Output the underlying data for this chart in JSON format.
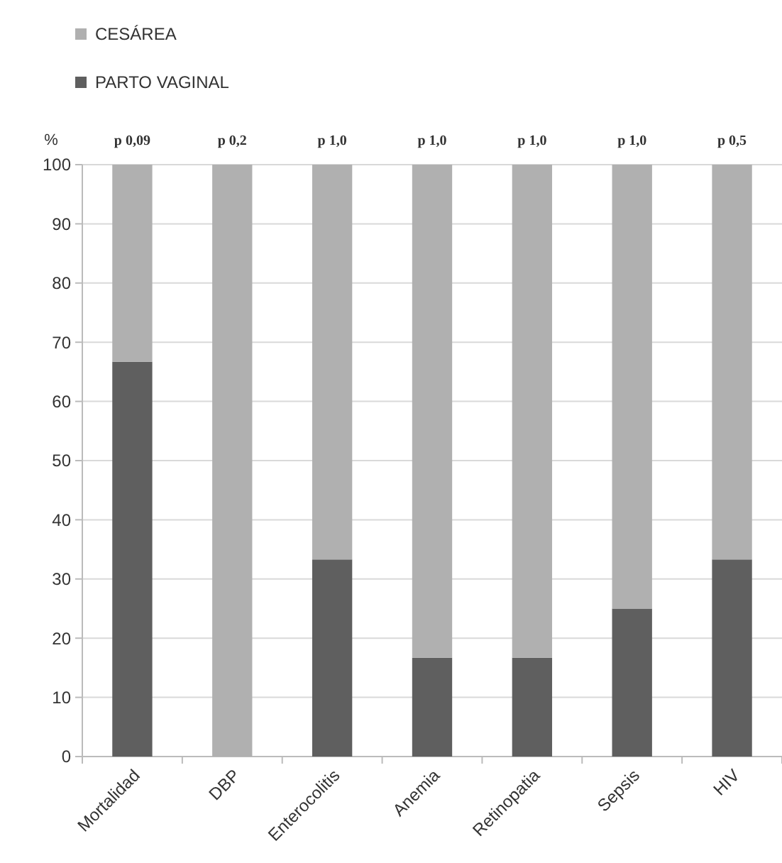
{
  "chart_data": {
    "type": "bar",
    "stacked": true,
    "ylabel": "%",
    "categories": [
      "Mortalidad",
      "DBP",
      "Enterocolitis",
      "Anemia",
      "Retinopatia",
      "Sepsis",
      "HIV"
    ],
    "series": [
      {
        "name": "PARTO VAGINAL",
        "color": "#5f5f5f",
        "values": [
          66.7,
          0,
          33.3,
          16.7,
          16.7,
          25,
          33.3
        ]
      },
      {
        "name": "CESÁREA",
        "color": "#b0b0b0",
        "values": [
          33.3,
          100,
          66.7,
          83.3,
          83.3,
          75,
          66.7
        ]
      }
    ],
    "ylim": [
      0,
      100
    ],
    "yticks": [
      0,
      10,
      20,
      30,
      40,
      50,
      60,
      70,
      80,
      90,
      100
    ],
    "grid": "y",
    "legend": "top left",
    "annotations": [
      {
        "text": "p 0,09",
        "x": "Mortalidad",
        "y": 100
      },
      {
        "text": "p 0,2",
        "x": "DBP",
        "y": 100
      },
      {
        "text": "p 1,0",
        "x": "Enterocolitis",
        "y": 100
      },
      {
        "text": "p 1,0",
        "x": "Anemia",
        "y": 100
      },
      {
        "text": "p 1,0",
        "x": "Retinopatia",
        "y": 100
      },
      {
        "text": "p 1,0",
        "x": "Sepsis",
        "y": 100
      },
      {
        "text": "p 0,5",
        "x": "HIV",
        "y": 100
      }
    ]
  }
}
